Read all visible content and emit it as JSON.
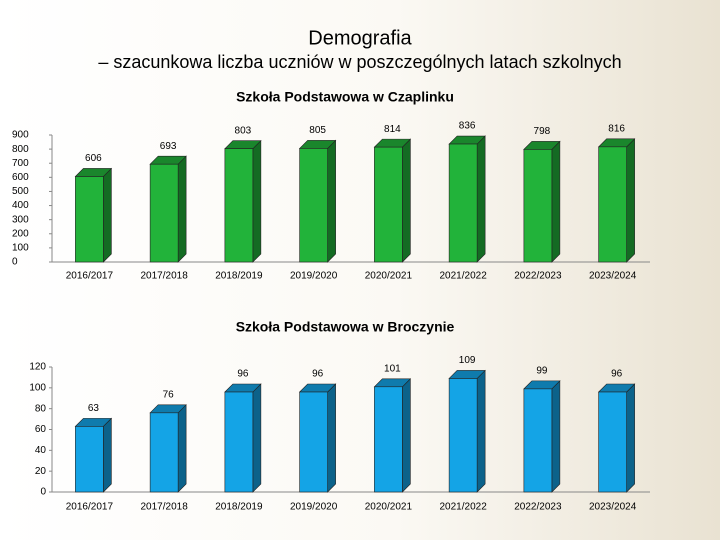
{
  "header": {
    "title": "Demografia",
    "subtitle": "– szacunkowa liczba uczniów w poszczególnych latach szkolnych"
  },
  "chart_data": [
    {
      "type": "bar",
      "title": "Szkoła Podstawowa w Czaplinku",
      "categories": [
        "2016/2017",
        "2017/2018",
        "2018/2019",
        "2019/2020",
        "2020/2021",
        "2021/2022",
        "2022/2023",
        "2023/2024"
      ],
      "values": [
        606,
        693,
        803,
        805,
        814,
        836,
        798,
        816
      ],
      "color": "#22b33a",
      "ylim": [
        0,
        900
      ],
      "yticks": [
        0,
        100,
        200,
        300,
        400,
        500,
        600,
        700,
        800,
        900
      ]
    },
    {
      "type": "bar",
      "title": "Szkoła Podstawowa w Broczynie",
      "categories": [
        "2016/2017",
        "2017/2018",
        "2018/2019",
        "2019/2020",
        "2020/2021",
        "2021/2022",
        "2022/2023",
        "2023/2024"
      ],
      "values": [
        63,
        76,
        96,
        96,
        101,
        109,
        99,
        96
      ],
      "color": "#14a4e6",
      "ylim": [
        0,
        120
      ],
      "yticks": [
        0,
        20,
        40,
        60,
        80,
        100,
        120
      ]
    }
  ]
}
